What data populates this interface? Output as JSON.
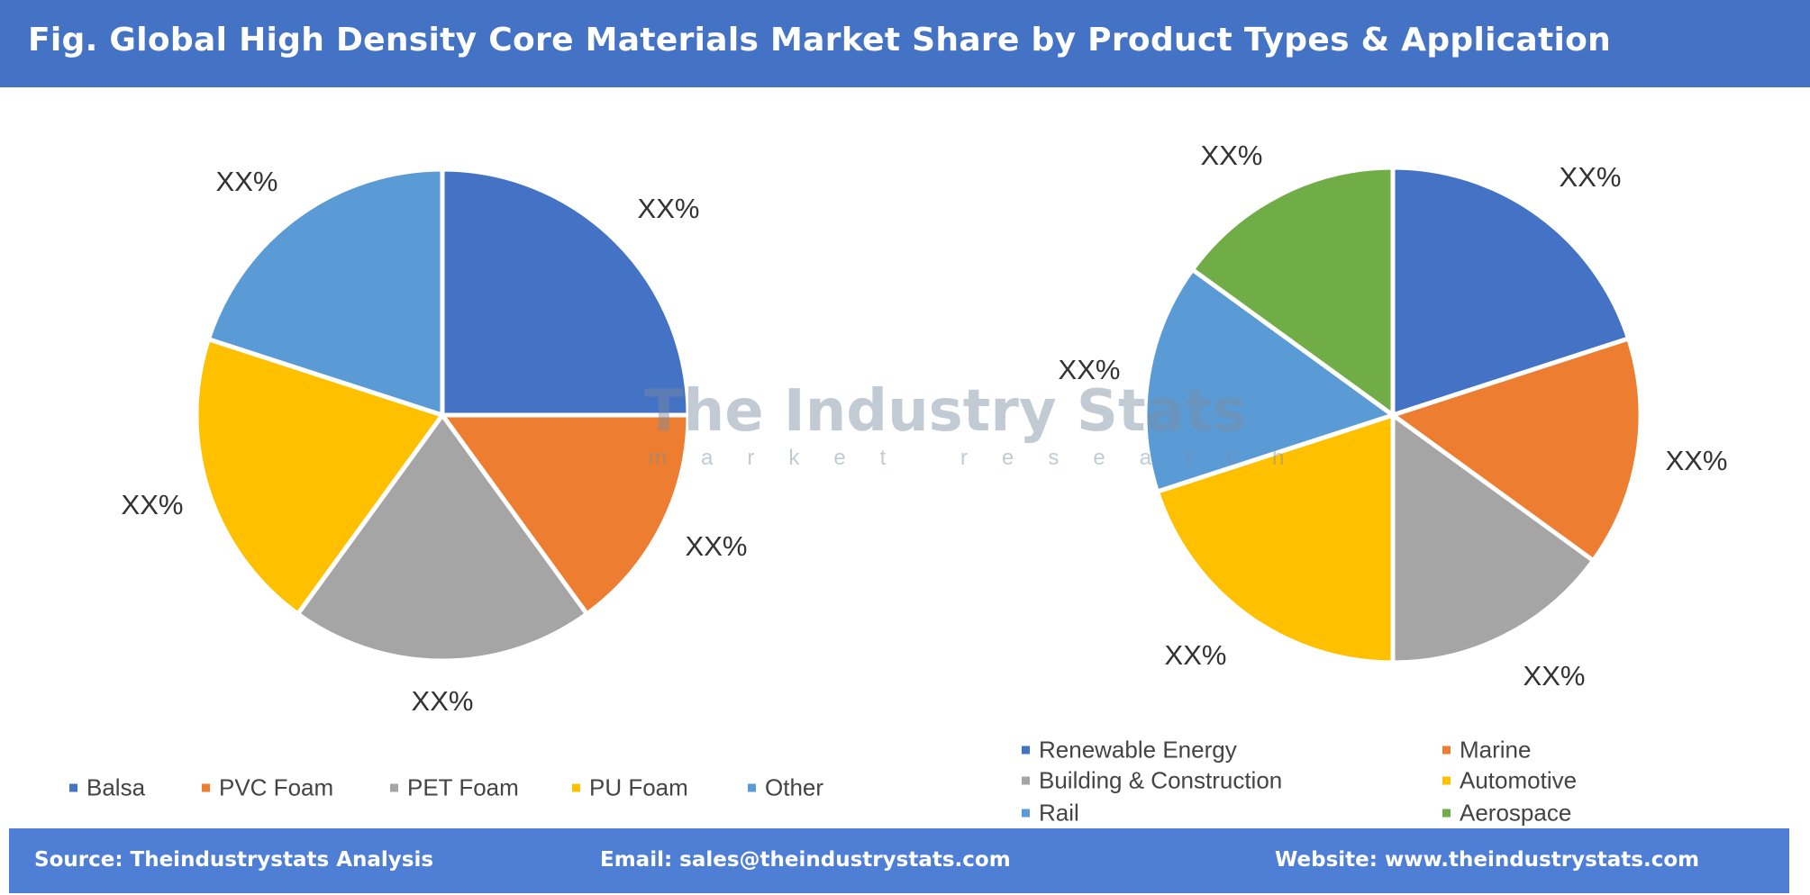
{
  "header": {
    "title": "Fig. Global High Density Core Materials Market Share by Product Types & Application"
  },
  "watermark": {
    "name": "The Industry Stats",
    "tagline": "market research"
  },
  "footer": {
    "source": "Source: Theindustrystats Analysis",
    "email": "Email: sales@theindustrystats.com",
    "website": "Website: www.theindustrystats.com"
  },
  "chart_data": [
    {
      "type": "pie",
      "title": "",
      "start_angle": "top, clockwise",
      "categories": [
        "Balsa",
        "PVC Foam",
        "PET Foam",
        "PU Foam",
        "Other"
      ],
      "values": [
        25,
        15,
        20,
        20,
        20
      ],
      "data_labels": [
        "XX%",
        "XX%",
        "XX%",
        "XX%",
        "XX%"
      ],
      "colors": [
        "#4472C4",
        "#ED7D31",
        "#A5A5A5",
        "#FFC000",
        "#5B9BD5"
      ],
      "legend": "bottom"
    },
    {
      "type": "pie",
      "title": "",
      "start_angle": "top, clockwise",
      "categories": [
        "Renewable Energy",
        "Marine",
        "Building & Construction",
        "Automotive",
        "Rail",
        "Aerospace"
      ],
      "values": [
        20,
        15,
        15,
        20,
        15,
        15
      ],
      "data_labels": [
        "XX%",
        "XX%",
        "XX%",
        "XX%",
        "XX%",
        "XX%"
      ],
      "colors": [
        "#4472C4",
        "#ED7D31",
        "#A5A5A5",
        "#FFC000",
        "#5B9BD5",
        "#70AD47"
      ],
      "legend": "bottom"
    }
  ]
}
